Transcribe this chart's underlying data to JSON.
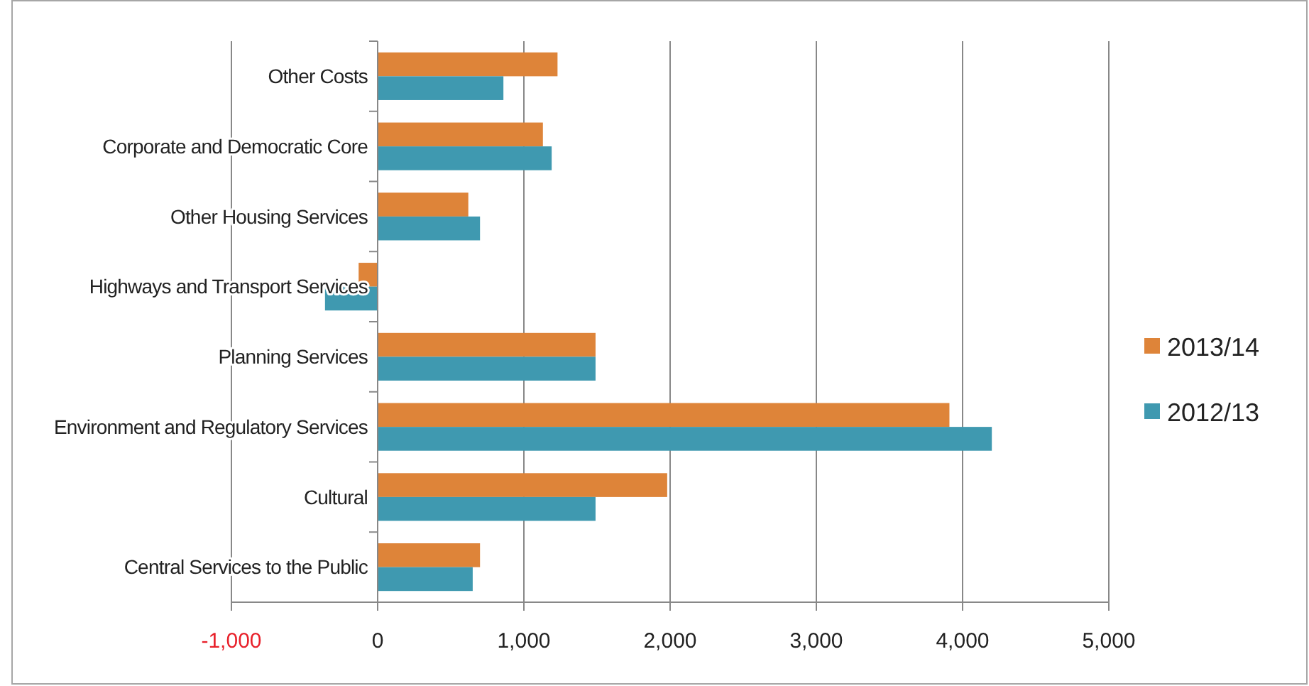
{
  "chart_data": {
    "type": "bar",
    "orientation": "horizontal",
    "categories": [
      "Other Costs",
      "Corporate and Democratic Core",
      "Other Housing Services",
      "Highways and Transport Services",
      "Planning Services",
      "Environment and Regulatory Services",
      "Cultural",
      "Central Services to the Public"
    ],
    "series": [
      {
        "name": "2013/14",
        "color": "#de8439",
        "values": [
          1230,
          1130,
          620,
          -130,
          1490,
          3910,
          1980,
          700
        ]
      },
      {
        "name": "2012/13",
        "color": "#3f99b0",
        "values": [
          860,
          1190,
          700,
          -360,
          1490,
          4200,
          1490,
          650
        ]
      }
    ],
    "xlim": [
      -1000,
      5000
    ],
    "xticks": [
      {
        "value": -1000,
        "label": "-1,000"
      },
      0,
      {
        "value": 1000,
        "label": "1,000"
      },
      {
        "value": 2000,
        "label": "2,000"
      },
      {
        "value": 3000,
        "label": "3,000"
      },
      {
        "value": 4000,
        "label": "4,000"
      },
      {
        "value": 5000,
        "label": "5,000"
      }
    ],
    "grid": "x",
    "legend": "right"
  }
}
